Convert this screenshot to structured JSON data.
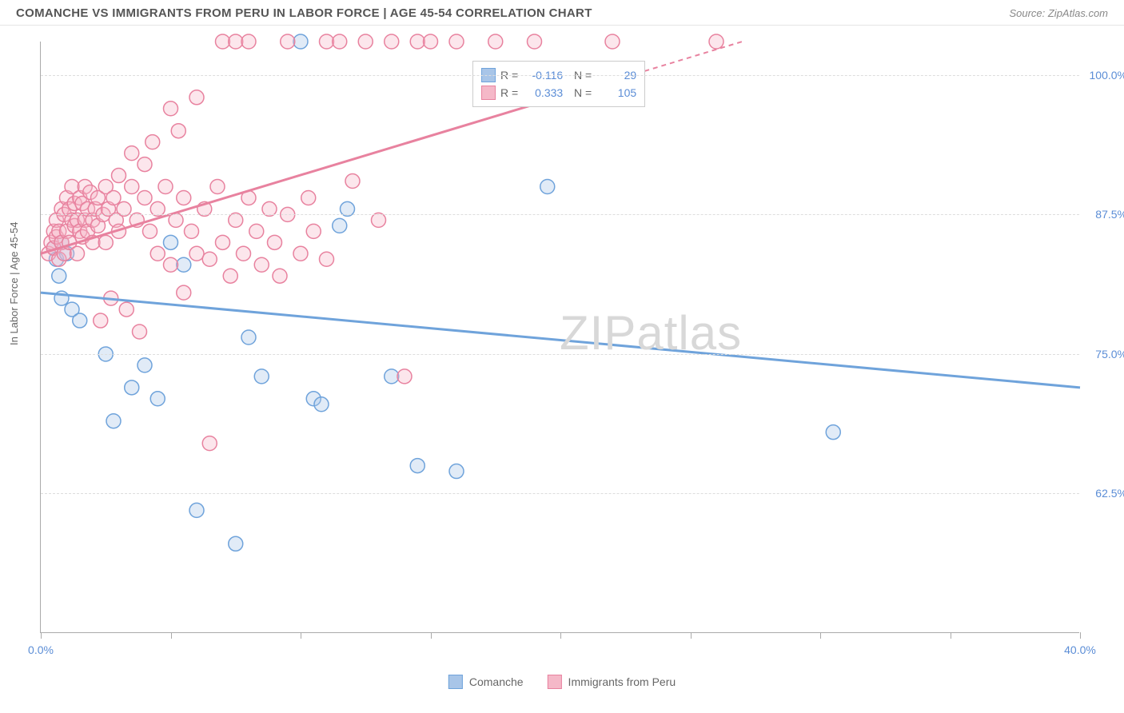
{
  "header": {
    "title": "COMANCHE VS IMMIGRANTS FROM PERU IN LABOR FORCE | AGE 45-54 CORRELATION CHART",
    "source": "Source: ZipAtlas.com"
  },
  "chart": {
    "type": "scatter",
    "ylabel": "In Labor Force | Age 45-54",
    "xlim": [
      0,
      40
    ],
    "ylim": [
      50,
      103
    ],
    "x_ticks": [
      0,
      5,
      10,
      15,
      20,
      25,
      30,
      35,
      40
    ],
    "x_tick_labels": {
      "0": "0.0%",
      "40": "40.0%"
    },
    "y_gridlines": [
      62.5,
      75.0,
      87.5,
      100.0
    ],
    "y_tick_labels": [
      "62.5%",
      "75.0%",
      "87.5%",
      "100.0%"
    ],
    "background_color": "#ffffff",
    "grid_color": "#dddddd",
    "axis_color": "#aaaaaa",
    "label_color": "#5b8dd6",
    "marker_radius": 9,
    "series": [
      {
        "name": "Comanche",
        "color_fill": "#a8c5e8",
        "color_stroke": "#6fa3db",
        "R": "-0.116",
        "N": "29",
        "trend": {
          "x1": 0,
          "y1": 80.5,
          "x2": 40,
          "y2": 72,
          "dashed_from": null
        },
        "points": [
          [
            0.5,
            84.5
          ],
          [
            0.6,
            83.5
          ],
          [
            0.7,
            82
          ],
          [
            0.8,
            80
          ],
          [
            0.8,
            85
          ],
          [
            1.0,
            84
          ],
          [
            1.2,
            79
          ],
          [
            1.5,
            78
          ],
          [
            2.5,
            75
          ],
          [
            2.8,
            69
          ],
          [
            3.5,
            72
          ],
          [
            4.0,
            74
          ],
          [
            4.5,
            71
          ],
          [
            5.0,
            85
          ],
          [
            5.5,
            83
          ],
          [
            6.0,
            61
          ],
          [
            7.5,
            58
          ],
          [
            8.0,
            76.5
          ],
          [
            8.5,
            73
          ],
          [
            10.0,
            103
          ],
          [
            10.5,
            71
          ],
          [
            10.8,
            70.5
          ],
          [
            11.5,
            86.5
          ],
          [
            11.8,
            88
          ],
          [
            13.5,
            73
          ],
          [
            14.5,
            65
          ],
          [
            16.0,
            64.5
          ],
          [
            19.5,
            90
          ],
          [
            30.5,
            68
          ]
        ]
      },
      {
        "name": "Immigrants from Peru",
        "color_fill": "#f5b8c8",
        "color_stroke": "#e8829f",
        "R": "0.333",
        "N": "105",
        "trend": {
          "x1": 0,
          "y1": 84,
          "x2": 27,
          "y2": 103,
          "dashed_from": 20
        },
        "points": [
          [
            0.3,
            84
          ],
          [
            0.4,
            85
          ],
          [
            0.5,
            86
          ],
          [
            0.5,
            84.5
          ],
          [
            0.6,
            85.5
          ],
          [
            0.6,
            87
          ],
          [
            0.7,
            86
          ],
          [
            0.7,
            83.5
          ],
          [
            0.8,
            88
          ],
          [
            0.8,
            85
          ],
          [
            0.9,
            87.5
          ],
          [
            0.9,
            84
          ],
          [
            1.0,
            89
          ],
          [
            1.0,
            86
          ],
          [
            1.1,
            88
          ],
          [
            1.1,
            85
          ],
          [
            1.2,
            87
          ],
          [
            1.2,
            90
          ],
          [
            1.3,
            86.5
          ],
          [
            1.3,
            88.5
          ],
          [
            1.4,
            87
          ],
          [
            1.4,
            84
          ],
          [
            1.5,
            89
          ],
          [
            1.5,
            86
          ],
          [
            1.6,
            88.5
          ],
          [
            1.6,
            85.5
          ],
          [
            1.7,
            87
          ],
          [
            1.7,
            90
          ],
          [
            1.8,
            88
          ],
          [
            1.8,
            86
          ],
          [
            1.9,
            89.5
          ],
          [
            2.0,
            87
          ],
          [
            2.0,
            85
          ],
          [
            2.1,
            88
          ],
          [
            2.2,
            86.5
          ],
          [
            2.2,
            89
          ],
          [
            2.3,
            78
          ],
          [
            2.4,
            87.5
          ],
          [
            2.5,
            90
          ],
          [
            2.5,
            85
          ],
          [
            2.6,
            88
          ],
          [
            2.7,
            80
          ],
          [
            2.8,
            89
          ],
          [
            2.9,
            87
          ],
          [
            3.0,
            91
          ],
          [
            3.0,
            86
          ],
          [
            3.2,
            88
          ],
          [
            3.3,
            79
          ],
          [
            3.5,
            90
          ],
          [
            3.5,
            93
          ],
          [
            3.7,
            87
          ],
          [
            3.8,
            77
          ],
          [
            4.0,
            89
          ],
          [
            4.0,
            92
          ],
          [
            4.2,
            86
          ],
          [
            4.3,
            94
          ],
          [
            4.5,
            88
          ],
          [
            4.5,
            84
          ],
          [
            4.8,
            90
          ],
          [
            5.0,
            97
          ],
          [
            5.0,
            83
          ],
          [
            5.2,
            87
          ],
          [
            5.3,
            95
          ],
          [
            5.5,
            89
          ],
          [
            5.5,
            80.5
          ],
          [
            5.8,
            86
          ],
          [
            6.0,
            98
          ],
          [
            6.0,
            84
          ],
          [
            6.3,
            88
          ],
          [
            6.5,
            67
          ],
          [
            6.5,
            83.5
          ],
          [
            6.8,
            90
          ],
          [
            7.0,
            103
          ],
          [
            7.0,
            85
          ],
          [
            7.3,
            82
          ],
          [
            7.5,
            103
          ],
          [
            7.5,
            87
          ],
          [
            7.8,
            84
          ],
          [
            8.0,
            89
          ],
          [
            8.0,
            103
          ],
          [
            8.3,
            86
          ],
          [
            8.5,
            83
          ],
          [
            8.8,
            88
          ],
          [
            9.0,
            85
          ],
          [
            9.2,
            82
          ],
          [
            9.5,
            103
          ],
          [
            9.5,
            87.5
          ],
          [
            10.0,
            84
          ],
          [
            10.3,
            89
          ],
          [
            10.5,
            86
          ],
          [
            11.0,
            103
          ],
          [
            11.0,
            83.5
          ],
          [
            11.5,
            103
          ],
          [
            12.0,
            90.5
          ],
          [
            12.5,
            103
          ],
          [
            13.0,
            87
          ],
          [
            13.5,
            103
          ],
          [
            14.0,
            73
          ],
          [
            14.5,
            103
          ],
          [
            15.0,
            103
          ],
          [
            16.0,
            103
          ],
          [
            17.5,
            103
          ],
          [
            19.0,
            103
          ],
          [
            22.0,
            103
          ],
          [
            26.0,
            103
          ]
        ]
      }
    ]
  },
  "legend_bottom": {
    "items": [
      "Comanche",
      "Immigrants from Peru"
    ]
  },
  "watermark": "ZIPatlas"
}
